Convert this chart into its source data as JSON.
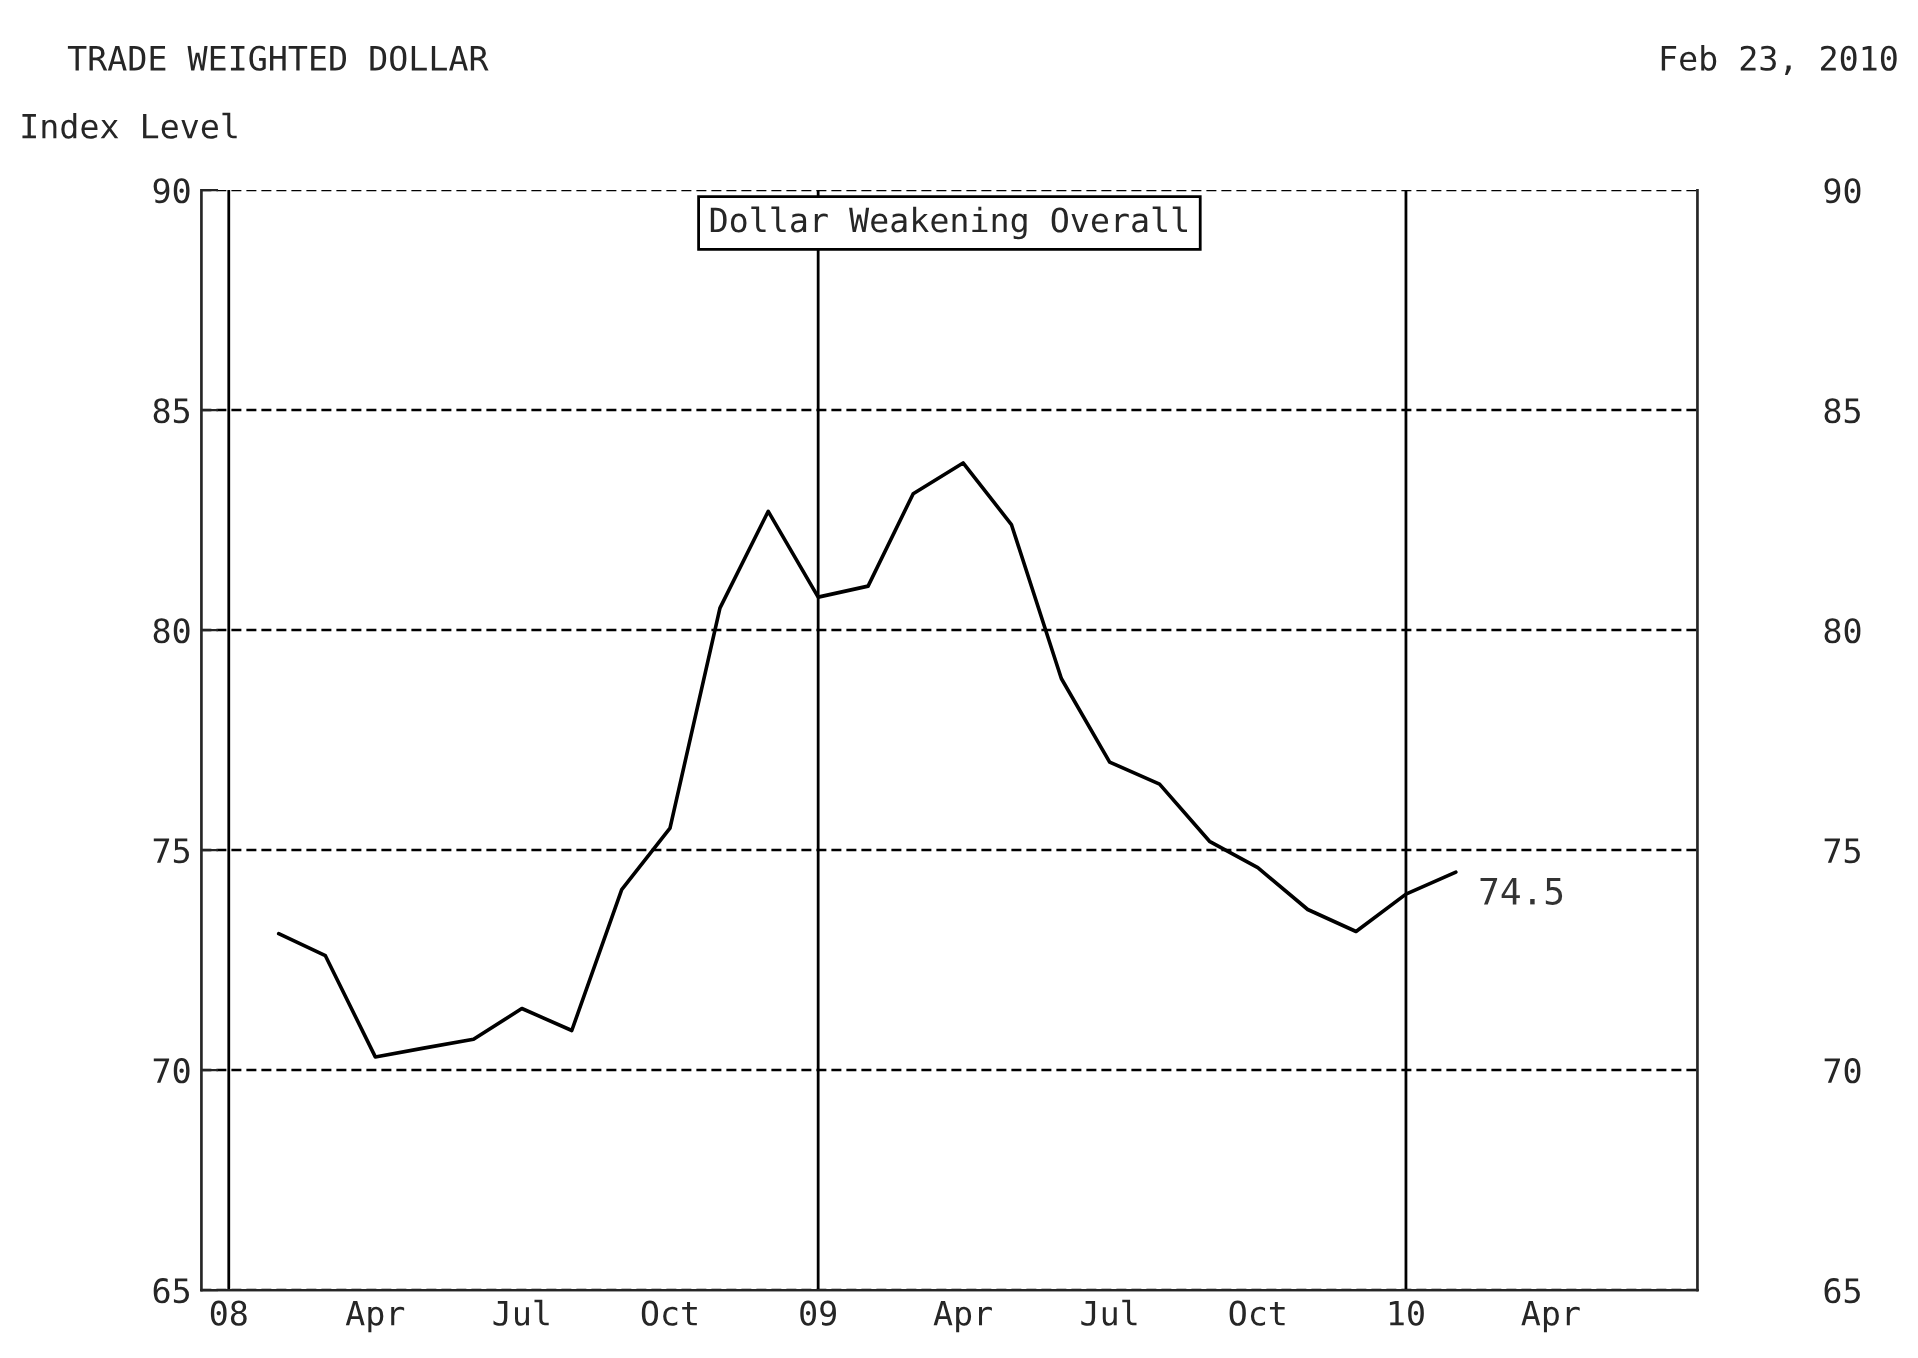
{
  "chart_data": {
    "type": "line",
    "title": "TRADE WEIGHTED DOLLAR",
    "ylabel": "Index Level",
    "annotations": [
      "Feb 23, 2010",
      "Dollar Weakening Overall",
      {
        "text": "74.5",
        "x": "2010-02-01",
        "y": 74.5
      }
    ],
    "x": [
      "2008-02-01",
      "2008-03-01",
      "2008-04-01",
      "2008-05-01",
      "2008-06-01",
      "2008-07-01",
      "2008-08-01",
      "2008-09-01",
      "2008-10-01",
      "2008-11-01",
      "2008-12-01",
      "2009-01-01",
      "2009-02-01",
      "2009-03-01",
      "2009-04-01",
      "2009-05-01",
      "2009-06-01",
      "2009-07-01",
      "2009-08-01",
      "2009-09-01",
      "2009-10-01",
      "2009-11-01",
      "2009-12-01",
      "2010-01-01",
      "2010-02-01"
    ],
    "series": [
      {
        "color": "#000000",
        "values": [
          73.1,
          72.6,
          70.3,
          70.5,
          70.7,
          71.4,
          70.9,
          74.1,
          75.5,
          80.5,
          82.7,
          80.75,
          81.0,
          83.1,
          83.8,
          82.4,
          78.9,
          77.0,
          76.5,
          75.2,
          74.6,
          73.65,
          73.15,
          74.0,
          74.5
        ]
      }
    ],
    "xlim": [
      "2007-12-15",
      "2010-07-01"
    ],
    "xticks": [
      {
        "value": "2008-01-01",
        "label": "08"
      },
      {
        "value": "2008-04-01",
        "label": "Apr"
      },
      {
        "value": "2008-07-01",
        "label": "Jul"
      },
      {
        "value": "2008-10-01",
        "label": "Oct"
      },
      {
        "value": "2009-01-01",
        "label": "09"
      },
      {
        "value": "2009-04-01",
        "label": "Apr"
      },
      {
        "value": "2009-07-01",
        "label": "Jul"
      },
      {
        "value": "2009-10-01",
        "label": "Oct"
      },
      {
        "value": "2010-01-01",
        "label": "10"
      },
      {
        "value": "2010-04-01",
        "label": "Apr"
      }
    ],
    "ylim": [
      65,
      90
    ],
    "yticks": [
      65,
      70,
      75,
      80,
      85,
      90
    ],
    "y2lim": [
      65,
      90
    ],
    "y2ticks": [
      65,
      70,
      75,
      80,
      85,
      90
    ],
    "ref_lines": [
      {
        "axis": "x",
        "value": "2008-01-01",
        "color": "#000000"
      },
      {
        "axis": "x",
        "value": "2009-01-01",
        "color": "#000000"
      },
      {
        "axis": "x",
        "value": "2010-01-01",
        "color": "#000000"
      }
    ],
    "grid": "y",
    "legend": false,
    "marker": "none",
    "line_style": "solid"
  }
}
